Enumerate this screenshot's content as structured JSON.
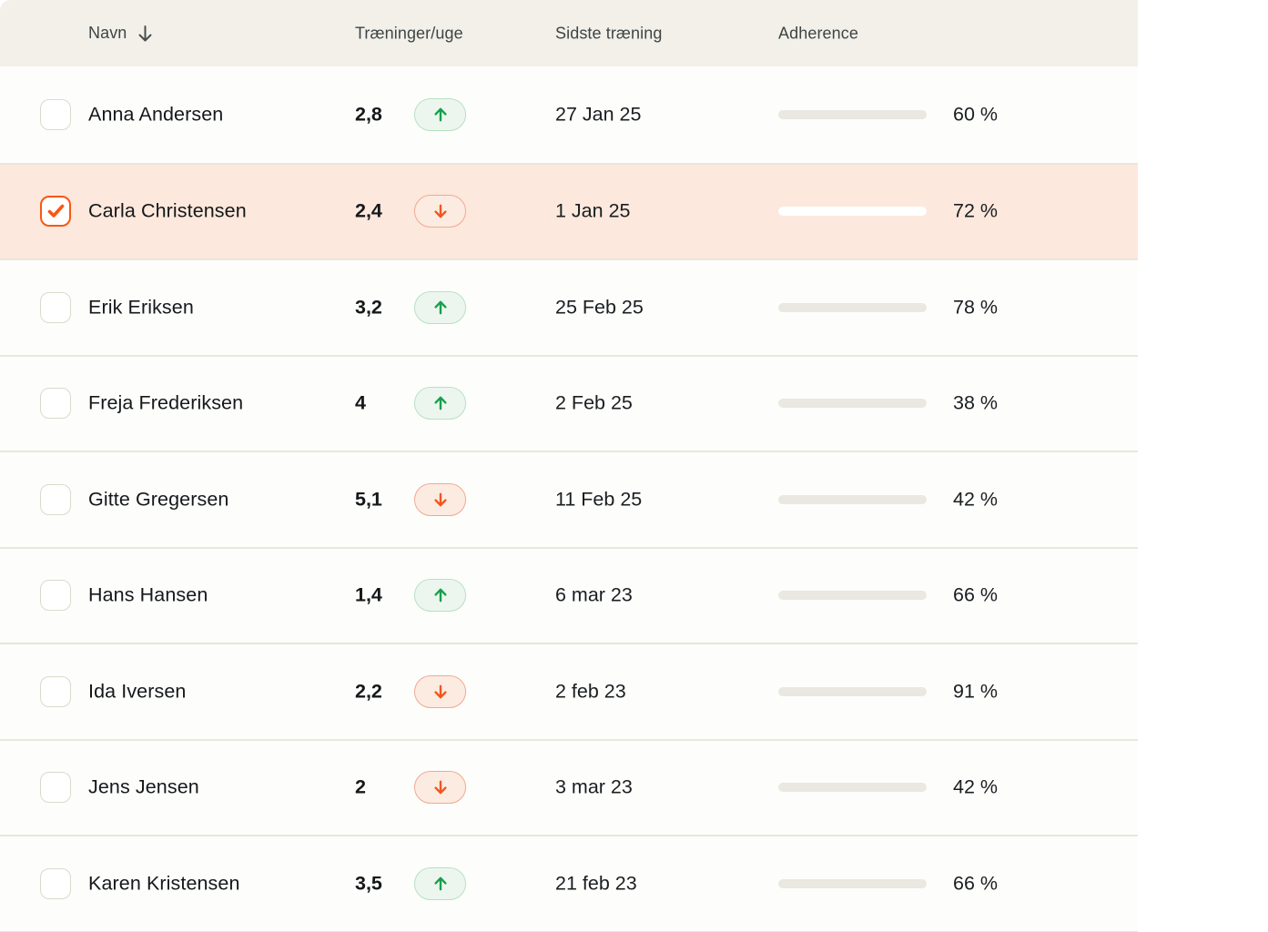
{
  "table": {
    "columns": {
      "name": "Navn",
      "trainings": "Træninger/uge",
      "last_training": "Sidste træning",
      "adherence": "Adherence"
    },
    "sort": {
      "column": "name",
      "direction": "descending",
      "icon": "arrow-down"
    },
    "rows": [
      {
        "name": "Anna Andersen",
        "trainings": "2,8",
        "trend": "up",
        "last_training": "27 Jan 25",
        "adherence_pct": 60,
        "adherence_label": "60 %",
        "checked": false,
        "highlighted": false
      },
      {
        "name": "Carla Christensen",
        "trainings": "2,4",
        "trend": "down",
        "last_training": "1 Jan 25",
        "adherence_pct": 72,
        "adherence_label": "72 %",
        "checked": true,
        "highlighted": true
      },
      {
        "name": "Erik Eriksen",
        "trainings": "3,2",
        "trend": "up",
        "last_training": "25 Feb 25",
        "adherence_pct": 78,
        "adherence_label": "78 %",
        "checked": false,
        "highlighted": false
      },
      {
        "name": "Freja Frederiksen",
        "trainings": "4",
        "trend": "up",
        "last_training": "2 Feb 25",
        "adherence_pct": 38,
        "adherence_label": "38 %",
        "checked": false,
        "highlighted": false
      },
      {
        "name": "Gitte Gregersen",
        "trainings": "5,1",
        "trend": "down",
        "last_training": "11 Feb 25",
        "adherence_pct": 42,
        "adherence_label": "42 %",
        "checked": false,
        "highlighted": false
      },
      {
        "name": "Hans Hansen",
        "trainings": "1,4",
        "trend": "up",
        "last_training": "6 mar 23",
        "adherence_pct": 66,
        "adherence_label": "66 %",
        "checked": false,
        "highlighted": false
      },
      {
        "name": "Ida Iversen",
        "trainings": "2,2",
        "trend": "down",
        "last_training": "2 feb 23",
        "adherence_pct": 91,
        "adherence_label": "91 %",
        "checked": false,
        "highlighted": false
      },
      {
        "name": "Jens Jensen",
        "trainings": "2",
        "trend": "down",
        "last_training": "3 mar 23",
        "adherence_pct": 42,
        "adherence_label": "42 %",
        "checked": false,
        "highlighted": false
      },
      {
        "name": "Karen Kristensen",
        "trainings": "3,5",
        "trend": "up",
        "last_training": "21 feb 23",
        "adherence_pct": 66,
        "adherence_label": "66 %",
        "checked": false,
        "highlighted": false
      }
    ],
    "colors": {
      "accent_orange": "#f95714",
      "header_bg": "#f2f0e8",
      "highlight_row_bg": "#fce8dd",
      "divider": "#e9e6da",
      "bar_track": "#e9e8e1",
      "trend_up_green": "#17a04d",
      "trend_up_bg": "#edf6ee",
      "trend_up_border": "#b5e2c1",
      "trend_down_orange": "#f2561c",
      "trend_down_bg": "#fcebe1",
      "trend_down_border": "#f3a88f"
    }
  }
}
